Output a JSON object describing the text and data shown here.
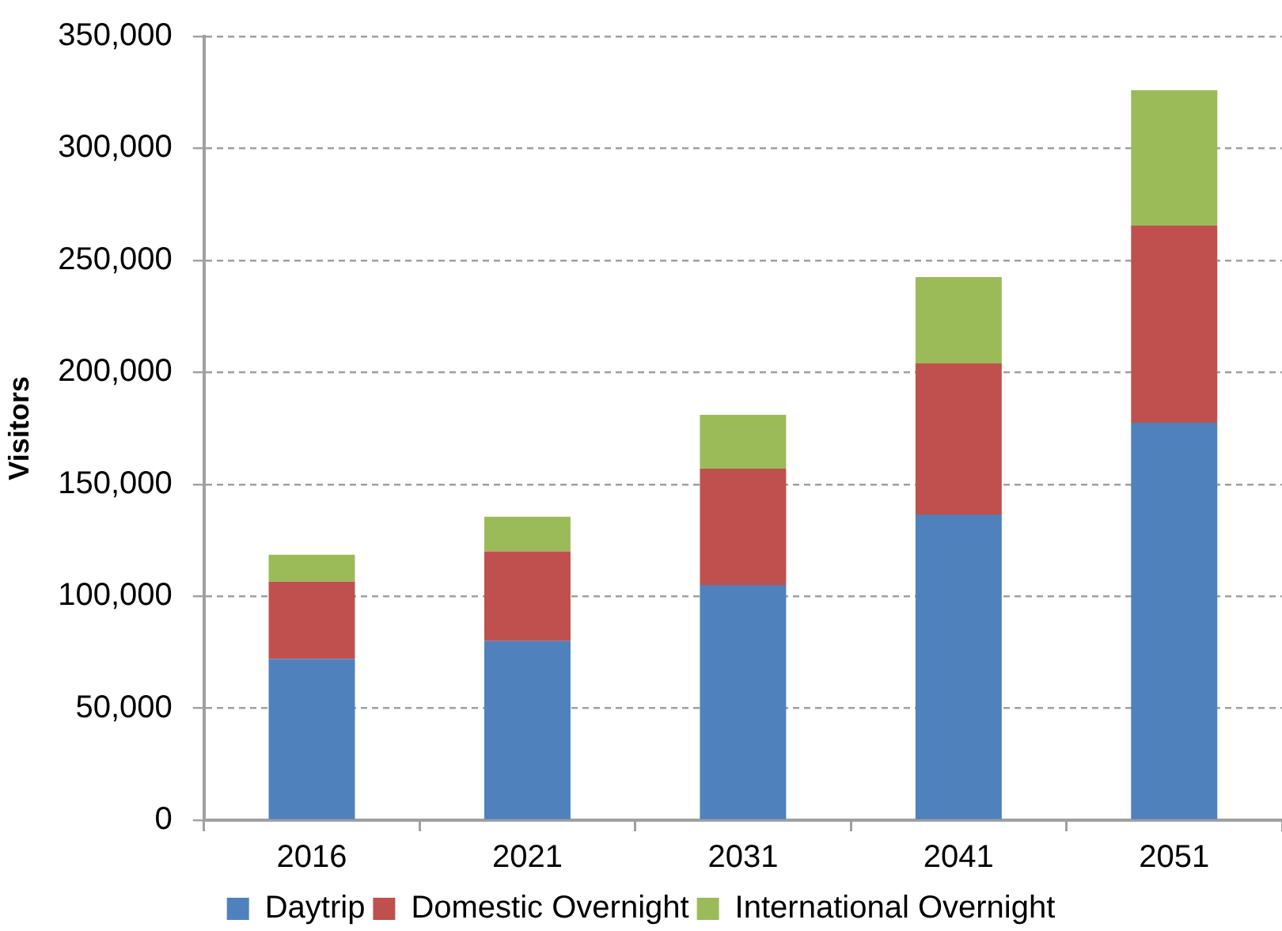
{
  "chart_data": {
    "type": "bar",
    "stacked": true,
    "categories": [
      "2016",
      "2021",
      "2031",
      "2041",
      "2051"
    ],
    "series": [
      {
        "name": "Daytrip",
        "color": "#4f81bd",
        "values": [
          72000,
          80000,
          105000,
          136500,
          177500
        ]
      },
      {
        "name": "Domestic Overnight",
        "color": "#c0504d",
        "values": [
          34500,
          40000,
          52000,
          67500,
          88000
        ]
      },
      {
        "name": "International Overnight",
        "color": "#9bbb59",
        "values": [
          12000,
          15500,
          24000,
          38500,
          60500
        ]
      }
    ],
    "ylabel": "Visitors",
    "ylim": [
      0,
      350000
    ],
    "yticks": [
      0,
      {
        "value": 50000,
        "label": "50,000"
      },
      {
        "value": 100000,
        "label": "100,000"
      },
      {
        "value": 150000,
        "label": "150,000"
      },
      {
        "value": 200000,
        "label": "200,000"
      },
      {
        "value": 250000,
        "label": "250,000"
      },
      {
        "value": 300000,
        "label": "300,000"
      },
      {
        "value": 350000,
        "label": "350,000"
      }
    ],
    "grid": "y",
    "legend": "bottom"
  }
}
